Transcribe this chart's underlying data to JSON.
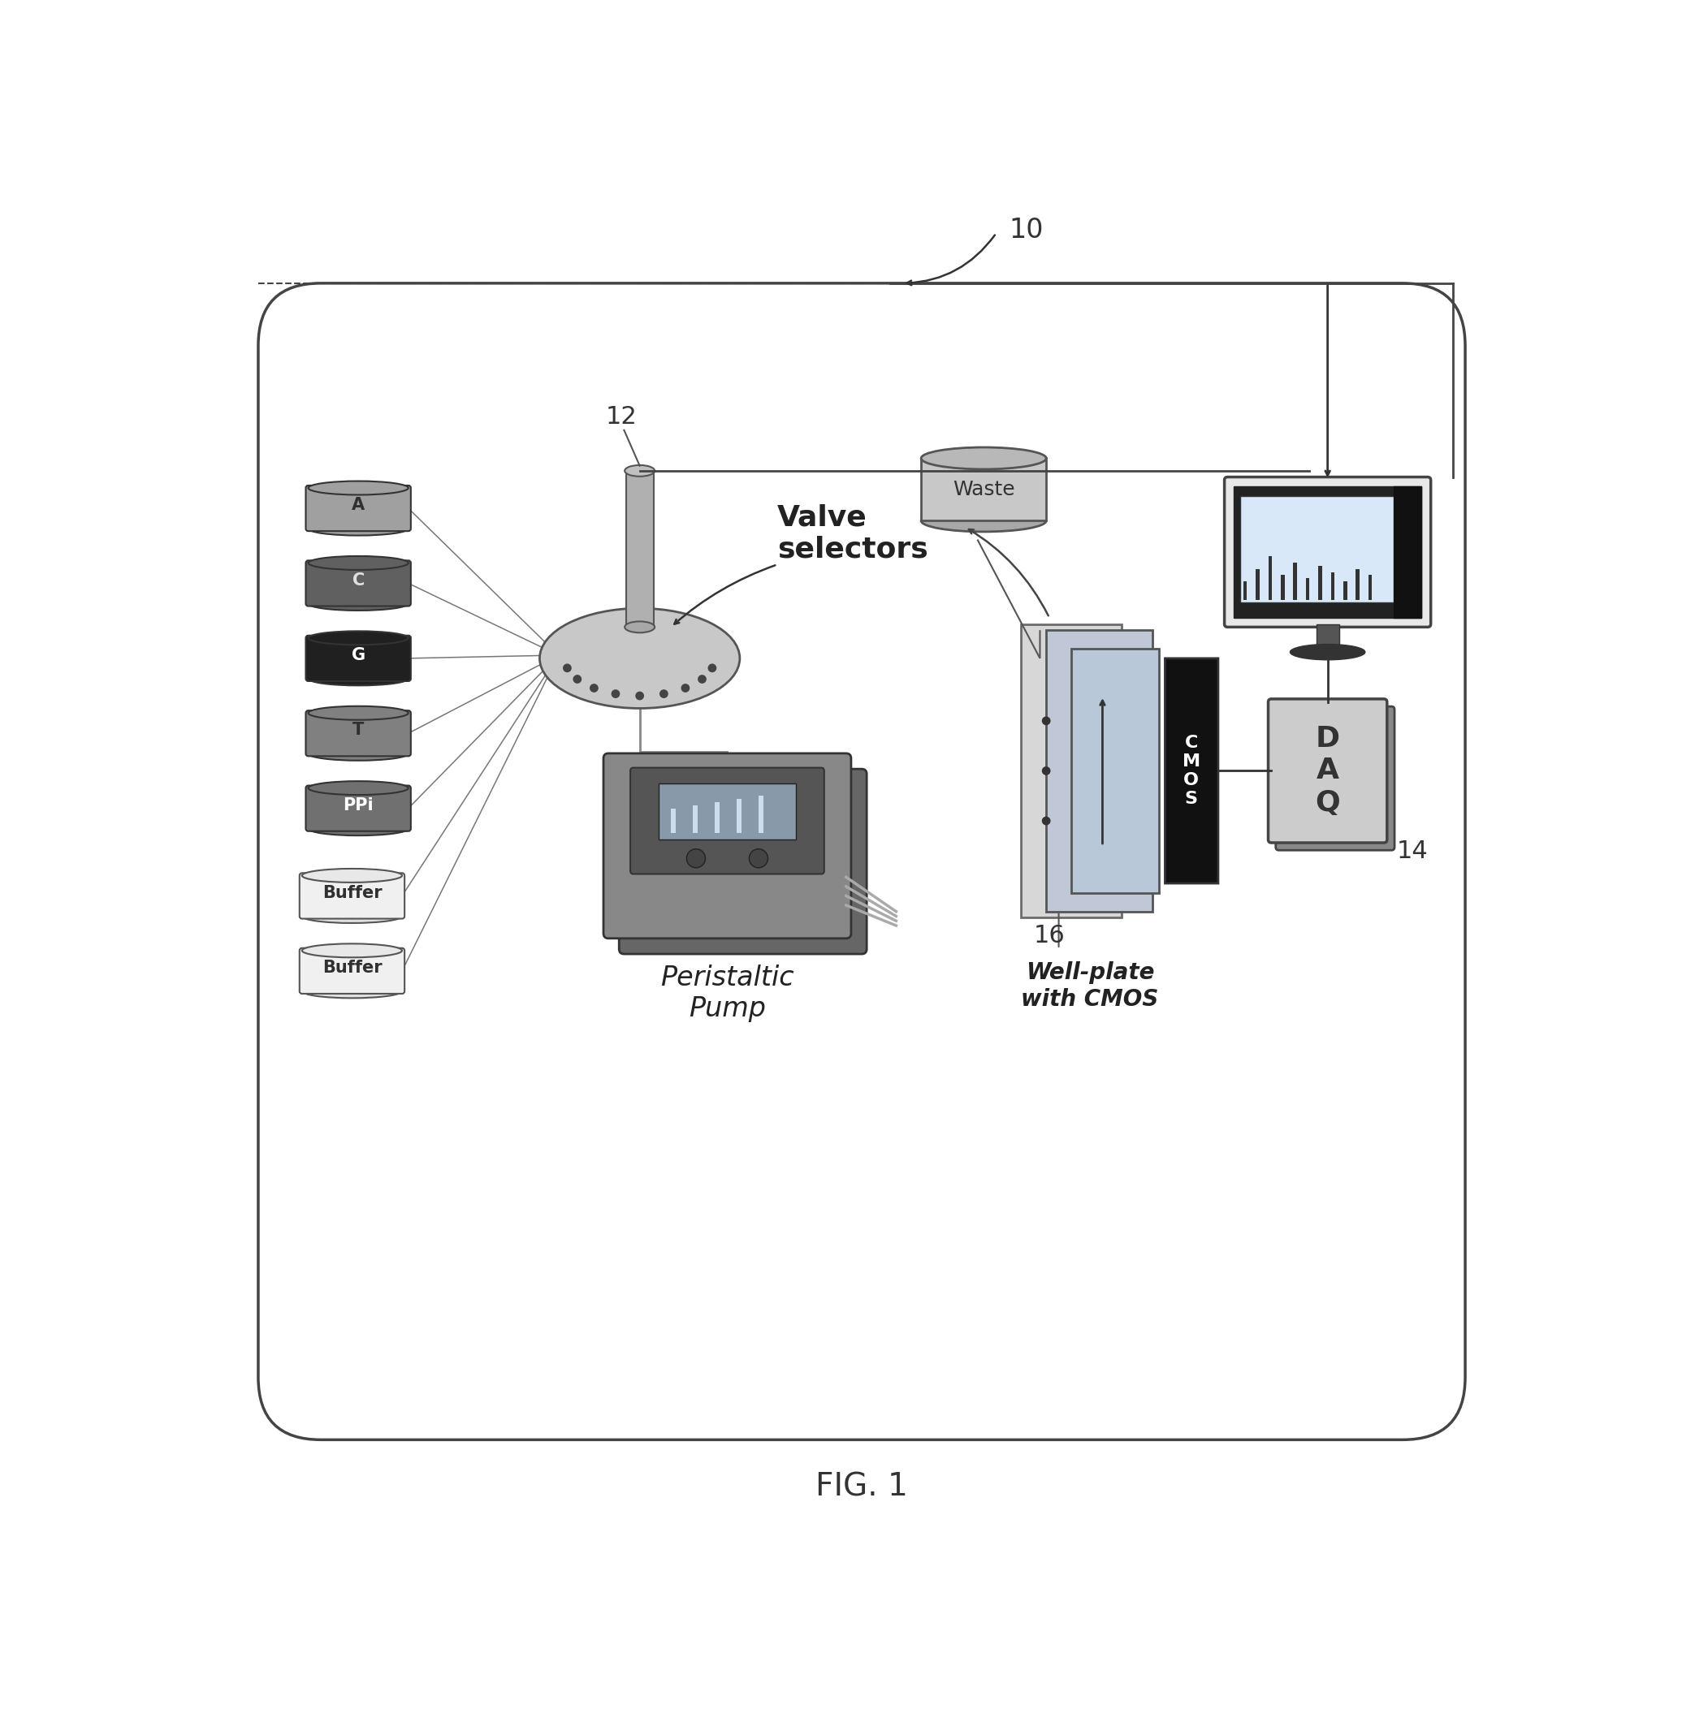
{
  "fig_label": "FIG. 1",
  "label_10": "10",
  "label_12": "12",
  "label_14": "14",
  "label_16": "16",
  "reagents": [
    "A",
    "C",
    "G",
    "T",
    "PPi",
    "Buffer",
    "Buffer"
  ],
  "reagent_colors": [
    "#a0a0a0",
    "#606060",
    "#202020",
    "#808080",
    "#707070",
    "#e0e0e0",
    "#e0e0e0"
  ],
  "reagent_text_colors": [
    "#303030",
    "#e0e0e0",
    "#ffffff",
    "#303030",
    "#ffffff",
    "#303030",
    "#303030"
  ],
  "valve_label": "Valve\nselectors",
  "pump_label": "Peristaltic\nPump",
  "waste_label": "Waste",
  "cmos_label": "C\nM\nO\nS",
  "daq_label": "D\nA\nQ",
  "wellplate_label": "Well-plate\nwith CMOS",
  "bg_color": "#ffffff",
  "box_edge_color": "#444444"
}
